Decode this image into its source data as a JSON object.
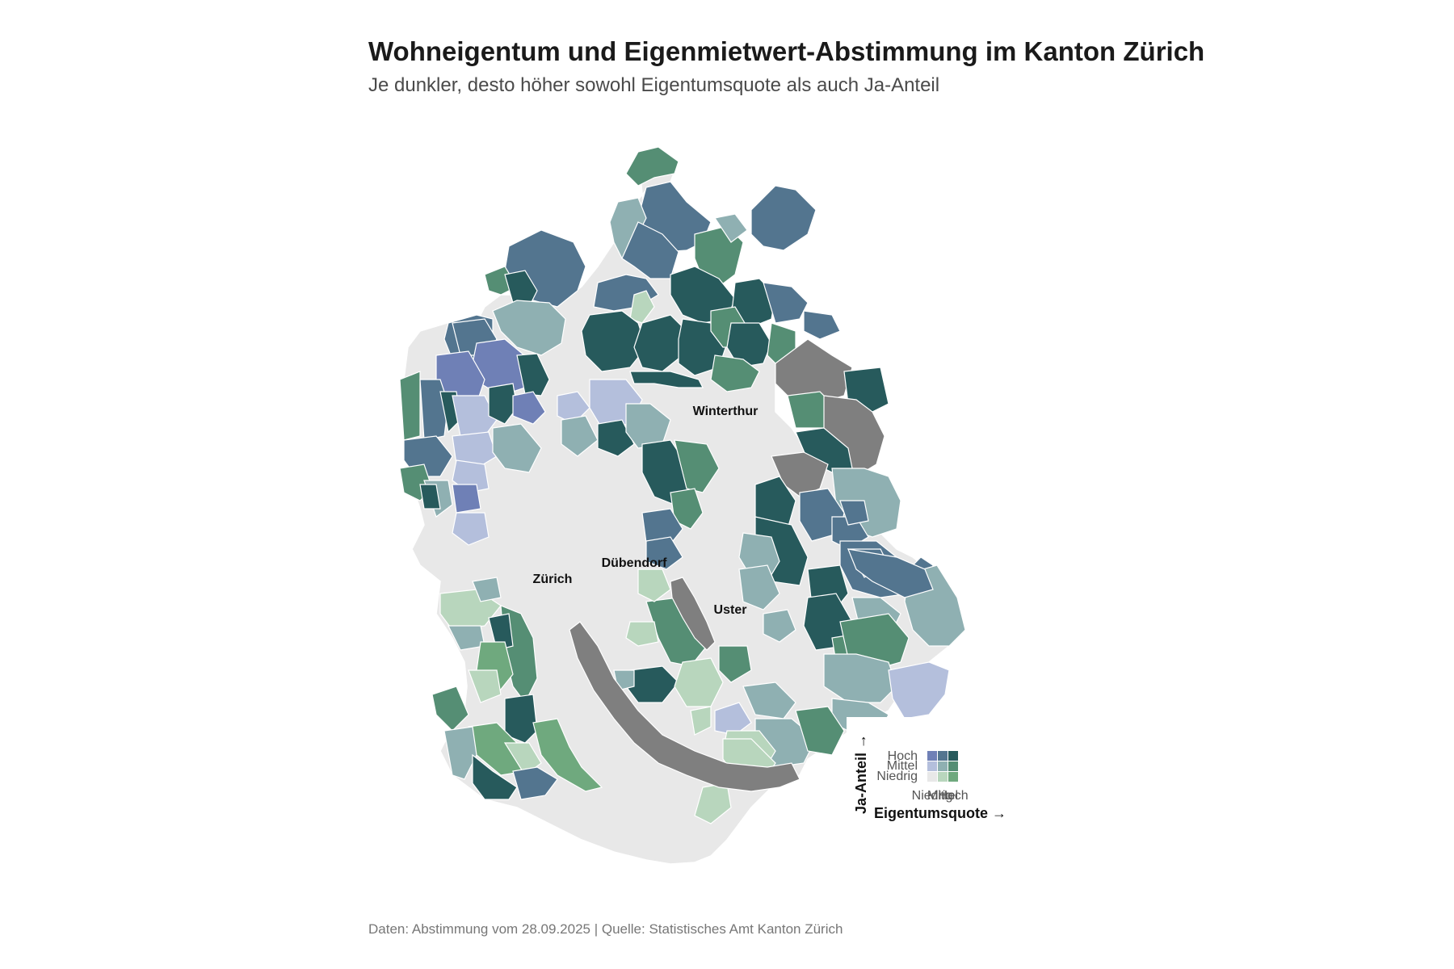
{
  "title": "Wohneigentum und Eigenmietwert-Abstimmung im Kanton Zürich",
  "subtitle": "Je dunkler, desto höher sowohl Eigentumsquote als auch Ja-Anteil",
  "source": "Daten: Abstimmung vom 28.09.2025 | Quelle: Statistisches Amt Kanton Zürich",
  "colors": {
    "no_data": "#e8e8e8",
    "lake": "#7f7f7f",
    "border": "#ffffff",
    "bivariate": {
      "ja_hoch_eig_niedrig": "#6f80b6",
      "ja_hoch_eig_mittel": "#53758f",
      "ja_hoch_eig_hoch": "#275a5c",
      "ja_mittel_eig_niedrig": "#b4bfdc",
      "ja_mittel_eig_mittel": "#8fb0b2",
      "ja_mittel_eig_hoch": "#558e74",
      "ja_niedrig_eig_niedrig": "#e8e8e8",
      "ja_niedrig_eig_mittel": "#b8d6bd",
      "ja_niedrig_eig_hoch": "#6fa97e"
    }
  },
  "cities": [
    "Winterthur",
    "Dübendorf",
    "Zürich",
    "Uster"
  ],
  "legend": {
    "y_axis_label": "Ja-Anteil →",
    "x_axis_label": "Eigentumsquote →",
    "y_levels": [
      "Hoch",
      "Mittel",
      "Niedrig"
    ],
    "x_levels": [
      "Niedrig",
      "Mittel",
      "Hoch"
    ]
  }
}
